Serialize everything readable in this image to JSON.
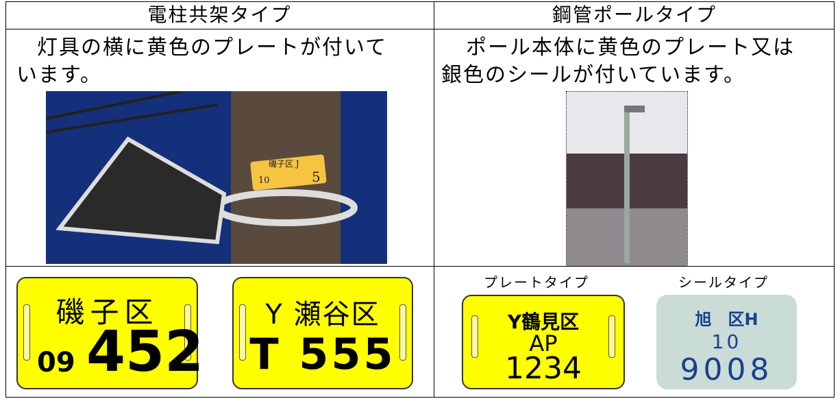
{
  "header": {
    "left": "電柱共架タイプ",
    "right": "鋼管ポールタイプ"
  },
  "left": {
    "description": [
      "灯具の横に黄色のプレートが付いて",
      "います。"
    ],
    "photo_plate": {
      "line1": "磯子区 J",
      "line2": "10",
      "line3": "5"
    },
    "plates": [
      {
        "top": "磯子区",
        "left": "09",
        "number": "452"
      },
      {
        "top": "Y 瀬谷区",
        "number": "T 555"
      }
    ]
  },
  "right": {
    "description": [
      "ポール本体に黄色のプレート又は",
      "銀色のシールが付いています。"
    ],
    "plate": {
      "caption": "プレートタイプ",
      "line1": "Y鶴見区",
      "line2": "AP",
      "line3": "1234"
    },
    "seal": {
      "caption": "シールタイプ",
      "line1": "旭　区H",
      "line2": "10",
      "line3": "9008"
    }
  }
}
